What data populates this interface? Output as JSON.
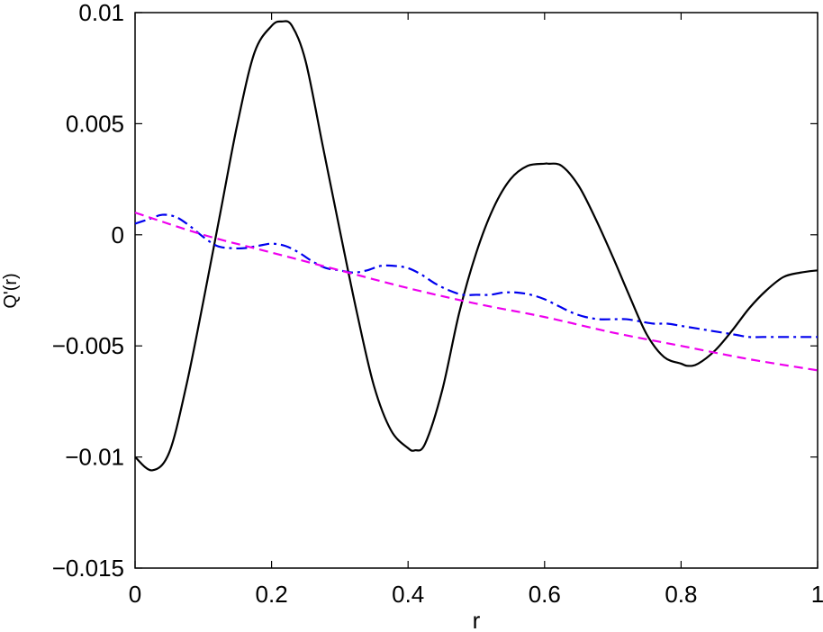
{
  "chart_data": {
    "type": "line",
    "title": "",
    "xlabel": "r",
    "ylabel": "Q'(r)",
    "xlim": [
      0,
      1
    ],
    "ylim": [
      -0.015,
      0.01
    ],
    "xticks": [
      0,
      0.2,
      0.4,
      0.6,
      0.8,
      1
    ],
    "xtick_labels": [
      "0",
      "0.2",
      "0.4",
      "0.6",
      "0.8",
      "1"
    ],
    "yticks": [
      -0.015,
      -0.01,
      -0.005,
      0,
      0.005,
      0.01
    ],
    "ytick_labels": [
      "−0.015",
      "−0.01",
      "−0.005",
      "0",
      "0.005",
      "0.01"
    ],
    "grid": false,
    "legend": "none",
    "series": [
      {
        "color": "#000000",
        "style": "solid",
        "x": [
          0,
          0.025,
          0.05,
          0.075,
          0.1,
          0.125,
          0.15,
          0.175,
          0.2,
          0.215,
          0.23,
          0.25,
          0.275,
          0.3,
          0.325,
          0.35,
          0.375,
          0.4,
          0.41,
          0.425,
          0.45,
          0.475,
          0.5,
          0.525,
          0.55,
          0.575,
          0.6,
          0.605,
          0.625,
          0.65,
          0.675,
          0.7,
          0.725,
          0.75,
          0.775,
          0.8,
          0.81,
          0.825,
          0.85,
          0.875,
          0.9,
          0.925,
          0.95,
          0.975,
          1.0
        ],
        "y": [
          -0.01,
          -0.0106,
          -0.0098,
          -0.0068,
          -0.003,
          0.001,
          0.005,
          0.0082,
          0.0094,
          0.0096,
          0.0094,
          0.0078,
          0.004,
          0.0002,
          -0.0035,
          -0.0068,
          -0.0088,
          -0.0096,
          -0.0097,
          -0.0094,
          -0.007,
          -0.0035,
          -0.0008,
          0.0012,
          0.0025,
          0.0031,
          0.0032,
          0.0032,
          0.0031,
          0.0022,
          0.0007,
          -0.001,
          -0.0028,
          -0.0045,
          -0.0055,
          -0.0058,
          -0.0059,
          -0.0058,
          -0.0052,
          -0.0043,
          -0.0033,
          -0.0025,
          -0.0019,
          -0.0017,
          -0.0016
        ]
      },
      {
        "color": "#0000ee",
        "style": "dashdot",
        "x": [
          0,
          0.02,
          0.04,
          0.06,
          0.08,
          0.1,
          0.12,
          0.14,
          0.16,
          0.18,
          0.2,
          0.22,
          0.24,
          0.26,
          0.28,
          0.3,
          0.32,
          0.34,
          0.36,
          0.38,
          0.4,
          0.42,
          0.44,
          0.46,
          0.48,
          0.5,
          0.52,
          0.54,
          0.56,
          0.58,
          0.6,
          0.62,
          0.64,
          0.66,
          0.68,
          0.7,
          0.72,
          0.74,
          0.76,
          0.78,
          0.8,
          0.82,
          0.84,
          0.86,
          0.88,
          0.9,
          0.92,
          0.94,
          0.96,
          0.98,
          1.0
        ],
        "y": [
          0.0005,
          0.0007,
          0.0009,
          0.0008,
          0.0004,
          -0.0001,
          -0.0005,
          -0.0006,
          -0.0006,
          -0.0005,
          -0.0004,
          -0.0005,
          -0.0008,
          -0.0012,
          -0.0015,
          -0.0016,
          -0.0017,
          -0.0016,
          -0.0014,
          -0.0014,
          -0.0015,
          -0.0018,
          -0.0022,
          -0.0025,
          -0.0027,
          -0.0027,
          -0.0027,
          -0.0026,
          -0.0026,
          -0.0027,
          -0.0029,
          -0.0032,
          -0.0035,
          -0.0037,
          -0.0038,
          -0.0038,
          -0.0038,
          -0.0039,
          -0.004,
          -0.004,
          -0.0041,
          -0.0042,
          -0.0043,
          -0.0044,
          -0.0045,
          -0.0046,
          -0.0046,
          -0.0046,
          -0.0046,
          -0.0046,
          -0.0046
        ]
      },
      {
        "color": "#ee00ee",
        "style": "dashed",
        "x": [
          0,
          0.1,
          0.2,
          0.3,
          0.4,
          0.5,
          0.6,
          0.7,
          0.8,
          0.9,
          1.0
        ],
        "y": [
          0.001,
          0.0,
          -0.0008,
          -0.0016,
          -0.0024,
          -0.0031,
          -0.0037,
          -0.0044,
          -0.005,
          -0.0056,
          -0.0061
        ]
      }
    ]
  }
}
